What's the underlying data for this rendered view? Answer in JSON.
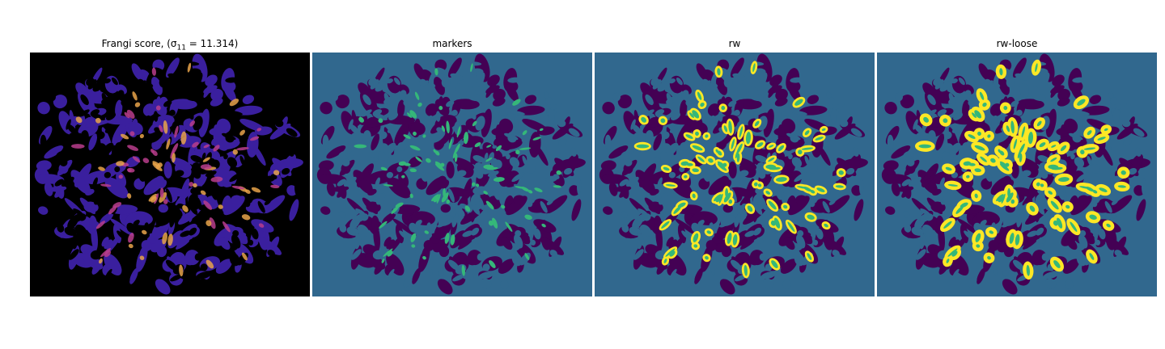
{
  "figure": {
    "panels": [
      {
        "title": "Frangi score, (σ",
        "title_sub": "11",
        "title_tail": " = 11.314)",
        "colormap": "plasma-like",
        "background_color": "#000000",
        "blob_color": "#3a1f9e",
        "highlight_colors": [
          "#e8a34a",
          "#b83d8c"
        ]
      },
      {
        "title": "markers",
        "colormap": "viridis (3 classes)",
        "background_color": "#31688e",
        "blob_color": "#440154",
        "marker_color": "#35b779"
      },
      {
        "title": "rw",
        "colormap": "viridis (4 classes)",
        "background_color": "#31688e",
        "blob_color": "#440154",
        "marker_color": "#35b779",
        "region_color": "#fde725"
      },
      {
        "title": "rw-loose",
        "colormap": "viridis (4 classes)",
        "background_color": "#31688e",
        "blob_color": "#440154",
        "marker_color": "#35b779",
        "region_color": "#fde725"
      }
    ]
  }
}
